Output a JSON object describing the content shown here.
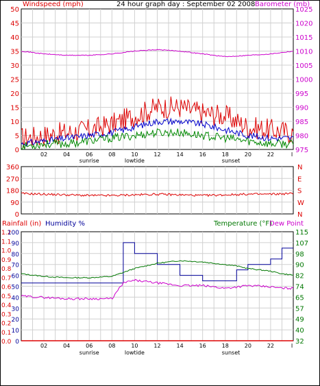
{
  "header": {
    "left_title": "Windspeed (mph)",
    "center_title": "24 hour graph day : September 02 2008",
    "right_title": "Barometer (mb)"
  },
  "colors": {
    "wind_red": "#dd0000",
    "baro_magenta": "#cc00cc",
    "wind_avg_blue": "#0000cc",
    "wind_green": "#008800",
    "dir_red": "#dd0000",
    "rain_red": "#dd0000",
    "humidity_blue": "#000099",
    "temp_green": "#007700",
    "dew_magenta": "#cc00cc",
    "grid": "#d0d0d0",
    "frame": "#000000"
  },
  "x_axis": {
    "ticks": [
      "02",
      "04",
      "06",
      "08",
      "10",
      "12",
      "14",
      "16",
      "18",
      "20",
      "22",
      "I"
    ],
    "events": [
      "sunrise",
      "lowtide",
      "sunset"
    ]
  },
  "chart_data": [
    {
      "type": "line",
      "title": "24 hour graph day : September 02 2008",
      "ylabel": "Windspeed (mph)",
      "y2label": "Barometer (mb)",
      "ylim": [
        0,
        50
      ],
      "y2lim": [
        975,
        1025
      ],
      "yticks": [
        0,
        5,
        10,
        15,
        20,
        25,
        30,
        35,
        40,
        45,
        50
      ],
      "y2ticks": [
        975,
        980,
        985,
        990,
        995,
        1000,
        1005,
        1010,
        1015,
        1020,
        1025
      ],
      "grid": true,
      "x_hours": [
        0,
        2,
        4,
        6,
        8,
        10,
        12,
        14,
        16,
        18,
        20,
        22,
        24
      ],
      "series": [
        {
          "color": "#dd0000",
          "axis": "left",
          "values": [
            4,
            5,
            6,
            7,
            9,
            12,
            15,
            15,
            13,
            12,
            8,
            7,
            6
          ]
        },
        {
          "color": "#0000cc",
          "axis": "left",
          "values": [
            2,
            3,
            4,
            5,
            6,
            8,
            10,
            10,
            9,
            7,
            5,
            4,
            4
          ]
        },
        {
          "color": "#008800",
          "axis": "left",
          "values": [
            1,
            2,
            2,
            3,
            4,
            5,
            6,
            6,
            5,
            4,
            3,
            2,
            2
          ]
        },
        {
          "color": "#cc00cc",
          "axis": "right",
          "values": [
            1010,
            1009,
            1008.5,
            1008.5,
            1009,
            1010,
            1010.5,
            1010,
            1009,
            1008,
            1008.5,
            1009,
            1010
          ]
        }
      ]
    },
    {
      "type": "line",
      "ylim": [
        0,
        360
      ],
      "yticks": [
        0,
        90,
        180,
        270,
        360
      ],
      "y2ticks": [
        "N",
        "W",
        "S",
        "E",
        "N"
      ],
      "grid": true,
      "x_hours": [
        0,
        2,
        4,
        6,
        8,
        10,
        12,
        14,
        16,
        18,
        20,
        22,
        24
      ],
      "series": [
        {
          "color": "#dd0000",
          "values": [
            155,
            150,
            145,
            140,
            140,
            145,
            150,
            145,
            140,
            145,
            150,
            150,
            155
          ]
        }
      ]
    },
    {
      "type": "line",
      "left_title": "Rainfall (in)",
      "left_title2": "Humidity %",
      "right_title": "Temperature (°F)",
      "right_title2": "Dew Point",
      "humidity_ylim": [
        0,
        100
      ],
      "humidity_ticks": [
        0,
        10,
        20,
        30,
        40,
        50,
        60,
        70,
        80,
        90,
        100
      ],
      "rain_ylim": [
        0,
        1.2
      ],
      "rain_ticks": [
        0.0,
        0.1,
        0.2,
        0.3,
        0.4,
        0.5,
        0.6,
        0.7,
        0.8,
        0.9,
        1.0,
        1.1,
        1.2
      ],
      "temp_ylim": [
        32,
        115
      ],
      "temp_ticks": [
        32,
        40,
        49,
        57,
        65,
        74,
        82,
        90,
        98,
        107,
        115
      ],
      "grid": true,
      "x_hours": [
        0,
        2,
        4,
        6,
        8,
        9,
        10,
        12,
        14,
        16,
        18,
        19,
        20,
        22,
        23,
        24
      ],
      "series": [
        {
          "name": "Humidity %",
          "color": "#000099",
          "axis": "humidity",
          "values": [
            53,
            53,
            53,
            53,
            53,
            90,
            80,
            70,
            60,
            55,
            55,
            65,
            70,
            75,
            85,
            85
          ]
        },
        {
          "name": "Temperature (°F)",
          "color": "#007700",
          "axis": "temp",
          "values": [
            83,
            81,
            80,
            80,
            81,
            84,
            87,
            91,
            93,
            92,
            90,
            89,
            87,
            85,
            83,
            82
          ]
        },
        {
          "name": "Dew Point",
          "color": "#cc00cc",
          "axis": "temp",
          "values": [
            66,
            65,
            64,
            64,
            64,
            76,
            78,
            76,
            74,
            74,
            72,
            73,
            74,
            73,
            72,
            72
          ]
        },
        {
          "name": "Rainfall (in)",
          "color": "#dd0000",
          "axis": "rain",
          "values": [
            0,
            0,
            0,
            0,
            0,
            0,
            0,
            0,
            0,
            0,
            0,
            0,
            0,
            0,
            0,
            0
          ]
        }
      ],
      "sunrise_hour": 6,
      "lowtide_hour": 10,
      "sunset_hour": 18.5
    }
  ]
}
